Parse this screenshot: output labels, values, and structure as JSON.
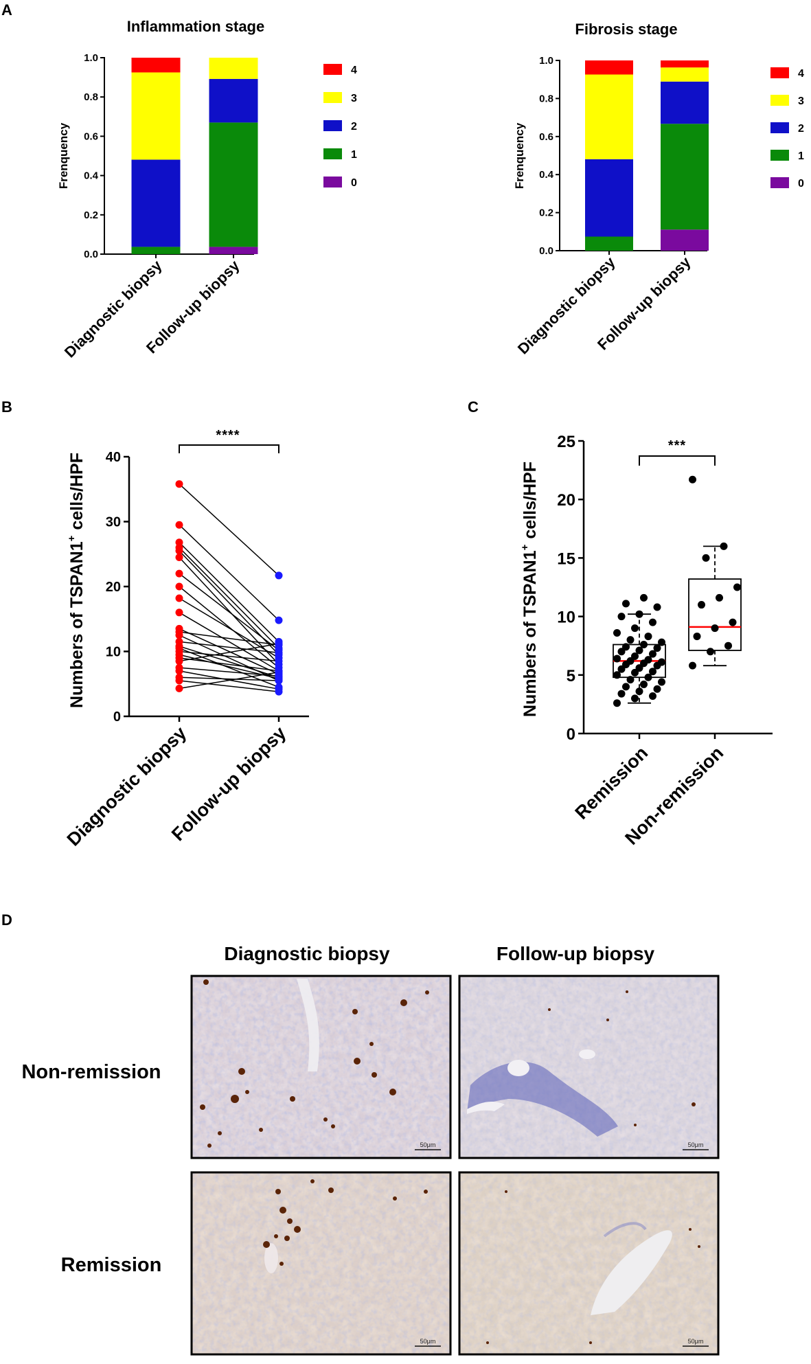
{
  "colors": {
    "stage_0": "#7a0a9e",
    "stage_1": "#0a8a0a",
    "stage_2": "#0f10c8",
    "stage_3": "#ffff00",
    "stage_4": "#ff0000",
    "diagnostic_points": "#ff0000",
    "followup_points": "#1a1aff",
    "median_line": "#ff0000"
  },
  "chart_data": [
    {
      "panel": "A",
      "type": "bar",
      "stacked": true,
      "title": "Inflammation stage",
      "ylabel": "Frenquency",
      "ylim": [
        0,
        1.0
      ],
      "yticks": [
        "0.0",
        "0.2",
        "0.4",
        "0.6",
        "0.8",
        "1.0"
      ],
      "categories": [
        "Diagnostic biopsy",
        "Follow-up biopsy"
      ],
      "legend_position": "right",
      "legend": [
        "4",
        "3",
        "2",
        "1",
        "0"
      ],
      "series": [
        {
          "name": "0",
          "values": [
            0.0,
            0.037
          ]
        },
        {
          "name": "1",
          "values": [
            0.037,
            0.633
          ]
        },
        {
          "name": "2",
          "values": [
            0.444,
            0.222
          ]
        },
        {
          "name": "3",
          "values": [
            0.444,
            0.108
          ]
        },
        {
          "name": "4",
          "values": [
            0.075,
            0.0
          ]
        }
      ]
    },
    {
      "panel": "",
      "type": "bar",
      "stacked": true,
      "title": "Fibrosis stage",
      "ylabel": "Frenquency",
      "ylim": [
        0,
        1.0
      ],
      "yticks": [
        "0.0",
        "0.2",
        "0.4",
        "0.6",
        "0.8",
        "1.0"
      ],
      "categories": [
        "Diagnostic biopsy",
        "Follow-up biopsy"
      ],
      "legend_position": "right",
      "legend": [
        "4",
        "3",
        "2",
        "1",
        "0"
      ],
      "series": [
        {
          "name": "0",
          "values": [
            0.0,
            0.111
          ]
        },
        {
          "name": "1",
          "values": [
            0.074,
            0.556
          ]
        },
        {
          "name": "2",
          "values": [
            0.407,
            0.222
          ]
        },
        {
          "name": "3",
          "values": [
            0.445,
            0.074
          ]
        },
        {
          "name": "4",
          "values": [
            0.074,
            0.037
          ]
        }
      ]
    },
    {
      "panel": "B",
      "type": "line",
      "subtype": "paired-dot",
      "ylabel": "Numbers of TSPAN1",
      "ylabel_sup": "+",
      "ylabel_tail": "cells/HPF",
      "ylim": [
        0,
        40
      ],
      "yticks": [
        "0",
        "10",
        "20",
        "30",
        "40"
      ],
      "categories": [
        "Diagnostic biopsy",
        "Follow-up biopsy"
      ],
      "significance": "****",
      "pairs": [
        [
          35.8,
          21.7
        ],
        [
          29.5,
          14.8
        ],
        [
          26.8,
          11.5
        ],
        [
          26.0,
          10.5
        ],
        [
          25.5,
          9.5
        ],
        [
          24.5,
          8.0
        ],
        [
          22.0,
          10.2
        ],
        [
          20.0,
          7.5
        ],
        [
          18.2,
          9.0
        ],
        [
          16.0,
          7.0
        ],
        [
          13.5,
          6.5
        ],
        [
          13.0,
          11.0
        ],
        [
          12.5,
          5.5
        ],
        [
          11.5,
          9.8
        ],
        [
          10.8,
          6.0
        ],
        [
          10.5,
          4.5
        ],
        [
          10.0,
          8.5
        ],
        [
          9.5,
          5.8
        ],
        [
          9.0,
          7.0
        ],
        [
          8.5,
          11.2
        ],
        [
          7.5,
          6.2
        ],
        [
          7.0,
          4.2
        ],
        [
          6.0,
          5.5
        ],
        [
          5.5,
          3.8
        ],
        [
          4.3,
          6.8
        ]
      ]
    },
    {
      "panel": "C",
      "type": "box",
      "ylabel": "Numbers of TSPAN1",
      "ylabel_sup": "+",
      "ylabel_tail": "cells/HPF",
      "ylim": [
        0,
        25
      ],
      "yticks": [
        "0",
        "5",
        "10",
        "15",
        "20",
        "25"
      ],
      "categories": [
        "Remission",
        "Non-remission"
      ],
      "significance": "***",
      "groups": [
        {
          "name": "Remission",
          "whisker_low": 2.6,
          "q1": 4.8,
          "median": 6.2,
          "q3": 7.6,
          "whisker_high": 10.2,
          "points": [
            2.6,
            3.0,
            3.2,
            3.4,
            3.6,
            3.8,
            4.0,
            4.2,
            4.4,
            4.6,
            4.8,
            5.0,
            5.2,
            5.3,
            5.5,
            5.6,
            5.8,
            5.9,
            6.0,
            6.1,
            6.2,
            6.3,
            6.4,
            6.6,
            6.8,
            7.0,
            7.1,
            7.3,
            7.4,
            7.6,
            7.8,
            8.0,
            8.3,
            8.6,
            9.0,
            9.5,
            10.0,
            10.2,
            10.8,
            11.1,
            11.6
          ]
        },
        {
          "name": "Non-remission",
          "whisker_low": 5.8,
          "q1": 7.1,
          "median": 9.1,
          "q3": 13.2,
          "whisker_high": 16.0,
          "points": [
            5.8,
            7.0,
            7.5,
            8.3,
            9.0,
            9.5,
            11.0,
            11.6,
            12.5,
            15.0,
            16.0,
            21.7
          ]
        }
      ]
    }
  ],
  "histology": {
    "panel": "D",
    "columns": [
      "Diagnostic biopsy",
      "Follow-up biopsy"
    ],
    "rows": [
      "Non-remission",
      "Remission"
    ],
    "scale_bar": "50μm"
  }
}
